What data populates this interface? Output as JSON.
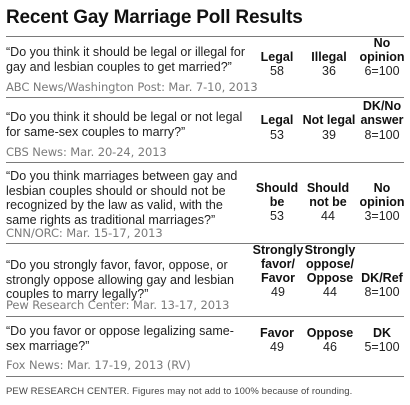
{
  "title": "Recent Gay Marriage Poll Results",
  "polls": [
    {
      "question": "“Do you think it should be legal or illegal for gay and lesbian couples to get married?”",
      "source": "ABC News/Washington Post: Mar. 7-10, 2013",
      "headers": [
        "Legal",
        "Illegal",
        "No opinion"
      ],
      "values": [
        "58",
        "36",
        "6=100"
      ]
    },
    {
      "question": "“Do you think it should be legal or not legal for same-sex couples to marry?”",
      "source": "CBS News: Mar. 20-24, 2013",
      "headers": [
        "Legal",
        "Not legal",
        "DK/No answer"
      ],
      "values": [
        "53",
        "39",
        "8=100"
      ]
    },
    {
      "question": "“Do you think marriages between gay and lesbian couples should or should not be recognized by the law as valid, with the same rights as traditional marriages?”",
      "source": "CNN/ORC: Mar. 15-17, 2013",
      "headers": [
        "Should be",
        "Should not be",
        "No opinion"
      ],
      "values": [
        "53",
        "44",
        "3=100"
      ]
    },
    {
      "question": "“Do you strongly favor, favor, oppose, or strongly oppose allowing gay and lesbian couples to marry legally?”",
      "source": "Pew Research Center: Mar. 13-17, 2013",
      "headers": [
        "Strongly favor/ Favor",
        "Strongly oppose/ Oppose",
        "DK/Ref"
      ],
      "values": [
        "49",
        "44",
        "8=100"
      ]
    },
    {
      "question": "“Do you favor or oppose legalizing same-sex marriage?”",
      "source": "Fox News: Mar. 17-19, 2013 (RV)",
      "headers": [
        "Favor",
        "Oppose",
        "DK"
      ],
      "values": [
        "49",
        "46",
        "5=100"
      ]
    }
  ],
  "footnote": "PEW RESEARCH CENTER. Figures may not add to 100% because of rounding."
}
